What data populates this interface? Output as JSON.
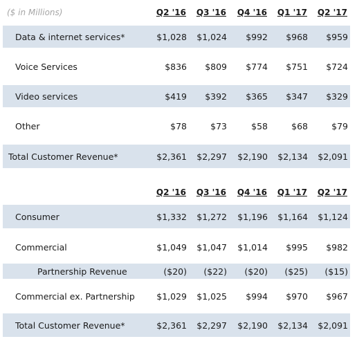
{
  "units": "($ in Millions)",
  "table1": {
    "headers": [
      "Q2 '16",
      "Q3 '16",
      "Q4 '16",
      "Q1 '17",
      "Q2 '17"
    ],
    "rows": [
      {
        "label": "Data & internet services*",
        "values": [
          "$1,028",
          "$1,024",
          "$992",
          "$968",
          "$959"
        ]
      },
      {
        "label": "Voice Services",
        "values": [
          "$836",
          "$809",
          "$774",
          "$751",
          "$724"
        ]
      },
      {
        "label": "Video services",
        "values": [
          "$419",
          "$392",
          "$365",
          "$347",
          "$329"
        ]
      },
      {
        "label": "Other",
        "values": [
          "$78",
          "$73",
          "$58",
          "$68",
          "$79"
        ]
      },
      {
        "label": "Total Customer Revenue*",
        "values": [
          "$2,361",
          "$2,297",
          "$2,190",
          "$2,134",
          "$2,091"
        ]
      }
    ]
  },
  "table2": {
    "headers": [
      "Q2 '16",
      "Q3 '16",
      "Q4 '16",
      "Q1 '17",
      "Q2 '17"
    ],
    "rows": [
      {
        "label": "Consumer",
        "values": [
          "$1,332",
          "$1,272",
          "$1,196",
          "$1,164",
          "$1,124"
        ]
      },
      {
        "label": "Commercial",
        "values": [
          "$1,049",
          "$1,047",
          "$1,014",
          "$995",
          "$982"
        ]
      },
      {
        "label": "Partnership Revenue",
        "values": [
          "($20)",
          "($22)",
          "($20)",
          "($25)",
          "($15)"
        ]
      },
      {
        "label": "Commercial ex. Partnership",
        "values": [
          "$1,029",
          "$1,025",
          "$994",
          "$970",
          "$967"
        ]
      },
      {
        "label": "Total Customer Revenue*",
        "values": [
          "$2,361",
          "$2,297",
          "$2,190",
          "$2,134",
          "$2,091"
        ]
      }
    ]
  }
}
